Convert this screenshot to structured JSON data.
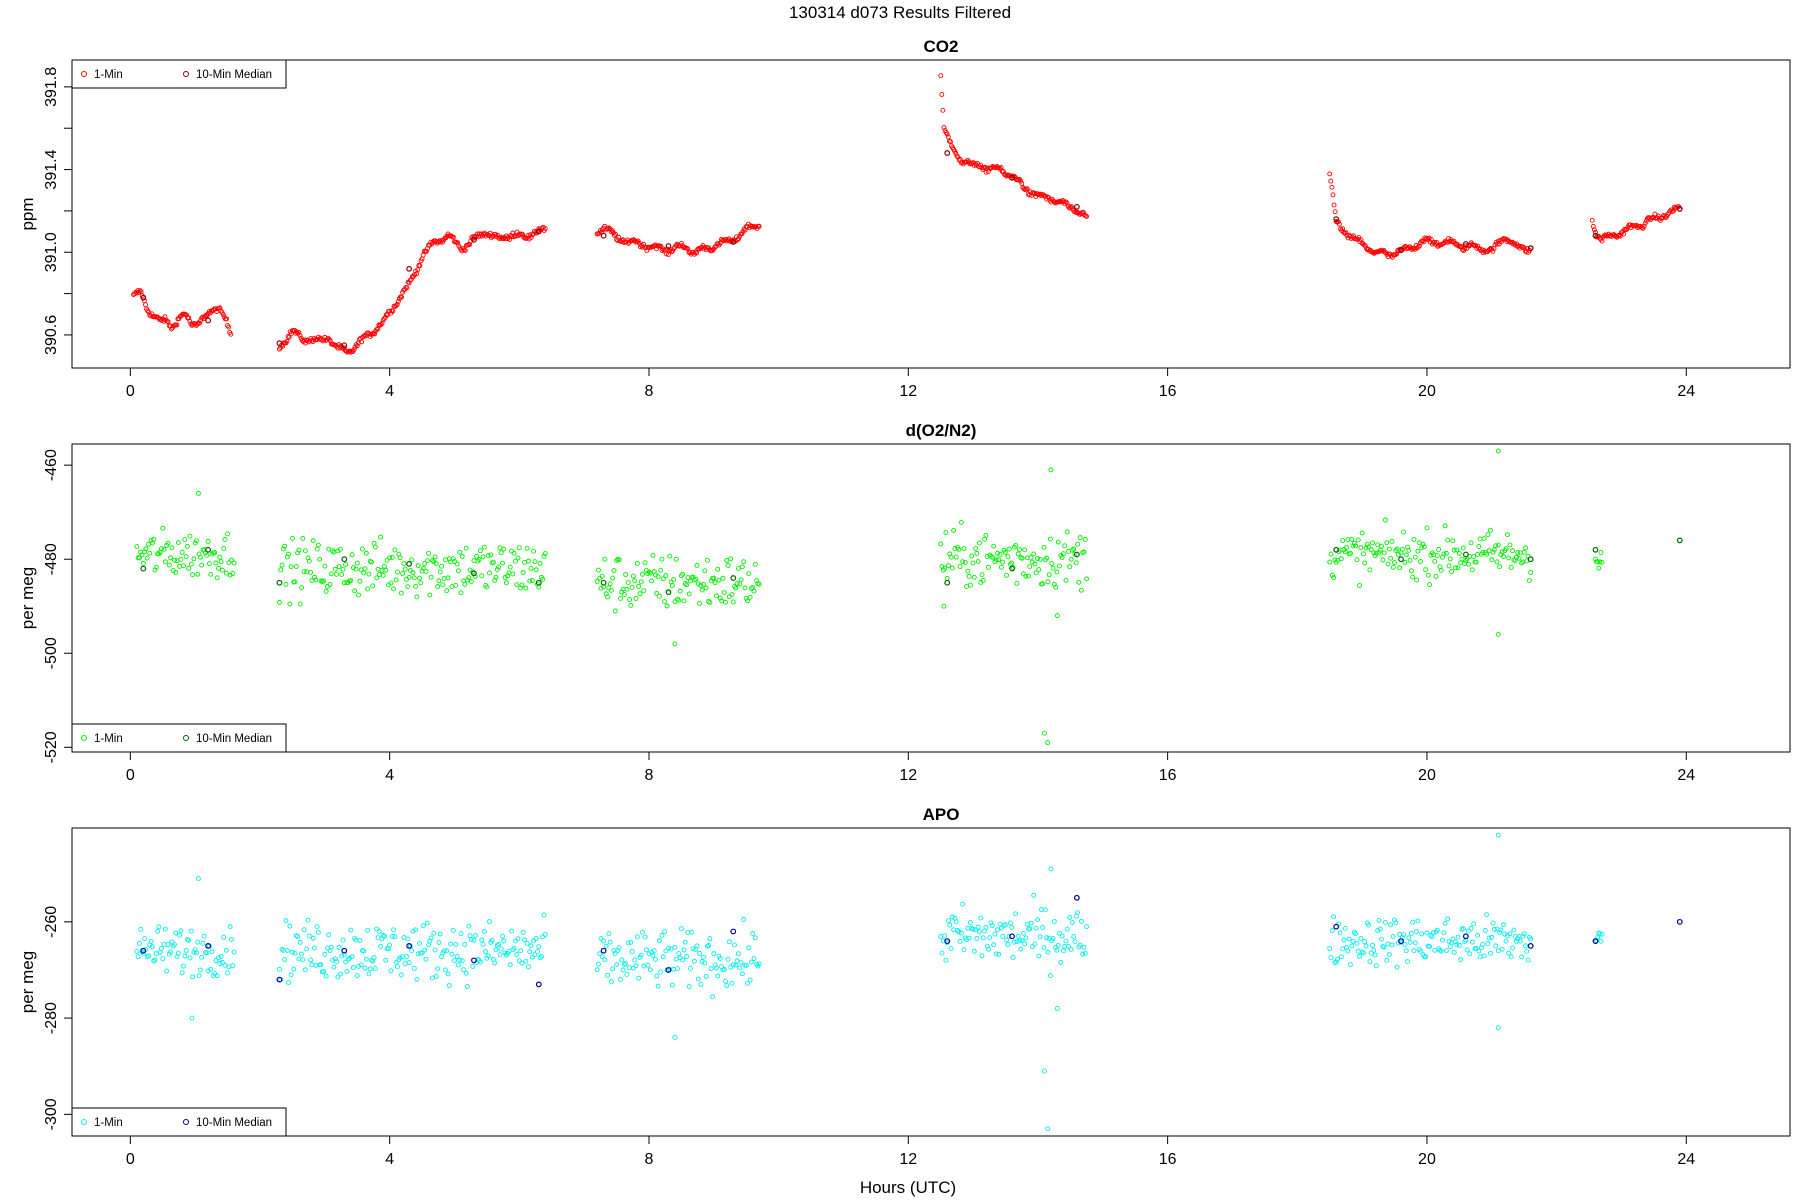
{
  "suptitle": "130314   d073   Results Filtered",
  "xlabel": "Hours (UTC)",
  "colors": {
    "co2_1min": "#ff0000",
    "co2_median": "#8b0000",
    "o2_1min": "#00ee00",
    "o2_median": "#006400",
    "apo_1min": "#00eeee",
    "apo_median": "#00008b"
  },
  "chart_data": [
    {
      "type": "scatter",
      "title": "CO2",
      "ylabel": "ppm",
      "xlim": [
        -0.9,
        25.6
      ],
      "ylim": [
        390.44,
        391.93
      ],
      "xticks": [
        0,
        4,
        8,
        12,
        16,
        20,
        24
      ],
      "yticks": [
        390.6,
        391.0,
        391.4,
        391.8
      ],
      "ytick_labels": [
        "390.6",
        "391.0",
        "391.4",
        "391.8"
      ],
      "legend": [
        "1-Min",
        "10-Min Median"
      ],
      "legend_position": "top-left",
      "series": [
        {
          "name": "1-Min",
          "color": "#ff0000",
          "segments": [
            {
              "x": [
                0.05,
                0.17,
                0.25,
                0.35,
                0.45,
                0.55,
                0.65,
                0.75,
                0.85,
                0.95,
                1.05,
                1.15,
                1.25,
                1.35,
                1.45,
                1.55
              ],
              "y": [
                390.78,
                390.81,
                390.74,
                390.69,
                390.66,
                390.68,
                390.64,
                390.67,
                390.7,
                390.66,
                390.65,
                390.68,
                390.72,
                390.74,
                390.68,
                390.6
              ]
            },
            {
              "x": [
                2.3,
                2.5,
                2.7,
                2.9,
                3.05,
                3.2,
                3.35,
                3.5,
                3.7,
                3.9,
                4.1,
                4.3,
                4.5,
                4.7,
                4.9,
                5.1,
                5.3,
                5.5,
                5.7,
                5.9,
                6.1,
                6.3,
                6.4
              ],
              "y": [
                390.55,
                390.61,
                390.58,
                390.57,
                390.59,
                390.53,
                390.52,
                390.55,
                390.61,
                390.66,
                390.76,
                390.84,
                390.98,
                391.05,
                391.08,
                391.02,
                391.06,
                391.1,
                391.06,
                391.09,
                391.07,
                391.11,
                391.1
              ]
            },
            {
              "x": [
                7.2,
                7.3,
                7.5,
                7.7,
                7.9,
                8.1,
                8.3,
                8.5,
                8.7,
                8.9,
                9.1,
                9.3,
                9.5,
                9.7
              ],
              "y": [
                391.1,
                391.12,
                391.07,
                391.05,
                391.04,
                391.02,
                391.01,
                391.03,
                391.0,
                391.02,
                391.04,
                391.06,
                391.11,
                391.14
              ]
            },
            {
              "x": [
                12.5,
                12.55,
                12.65,
                12.8,
                13.0,
                13.2,
                13.4,
                13.6,
                13.8,
                14.0,
                14.2,
                14.4,
                14.6,
                14.75
              ],
              "y": [
                391.86,
                391.6,
                391.52,
                391.45,
                391.42,
                391.41,
                391.4,
                391.37,
                391.31,
                391.27,
                391.26,
                391.23,
                391.2,
                391.17
              ]
            },
            {
              "x": [
                18.5,
                18.6,
                18.8,
                19.0,
                19.2,
                19.4,
                19.6,
                19.8,
                20.0,
                20.2,
                20.4,
                20.6,
                20.8,
                21.0,
                21.2,
                21.4,
                21.6
              ],
              "y": [
                391.38,
                391.14,
                391.08,
                391.04,
                391.0,
                390.99,
                391.0,
                391.03,
                391.06,
                391.04,
                391.05,
                391.02,
                391.03,
                391.0,
                391.08,
                391.02,
                391.02
              ]
            },
            {
              "x": [
                22.55,
                22.6,
                22.65,
                22.7,
                23.9
              ],
              "y": [
                391.16,
                391.1,
                391.08,
                391.06,
                391.21
              ]
            }
          ]
        },
        {
          "name": "10-Min Median",
          "color": "#8b0000",
          "x": [
            0.2,
            1.2,
            2.3,
            3.3,
            4.3,
            5.3,
            6.3,
            7.3,
            8.3,
            9.3,
            12.6,
            13.6,
            14.6,
            18.6,
            19.6,
            20.6,
            21.6,
            22.6,
            23.9
          ],
          "y": [
            390.78,
            390.67,
            390.56,
            390.55,
            390.92,
            391.06,
            391.1,
            391.08,
            391.03,
            391.05,
            391.48,
            391.36,
            391.22,
            391.16,
            391.01,
            391.04,
            391.02,
            391.08,
            391.21
          ]
        }
      ]
    },
    {
      "type": "scatter",
      "title": "d(O2/N2)",
      "ylabel": "per meg",
      "xlim": [
        -0.9,
        25.6
      ],
      "ylim": [
        -521,
        -455.5
      ],
      "xticks": [
        0,
        4,
        8,
        12,
        16,
        20,
        24
      ],
      "yticks": [
        -520,
        -500,
        -480,
        -460
      ],
      "ytick_labels": [
        "-520",
        "-500",
        "-480",
        "-460"
      ],
      "legend": [
        "1-Min",
        "10-Min Median"
      ],
      "legend_position": "bottom-left",
      "series": [
        {
          "name": "1-Min",
          "color": "#00ee00",
          "segments": [
            {
              "x": [
                0.1,
                1.6
              ],
              "mean": -479,
              "spread": 5
            },
            {
              "x": [
                2.3,
                6.4
              ],
              "mean": -482,
              "spread": 6
            },
            {
              "x": [
                7.2,
                9.7
              ],
              "mean": -485,
              "spread": 6
            },
            {
              "x": [
                12.5,
                14.75
              ],
              "mean": -480,
              "spread": 6
            },
            {
              "x": [
                18.5,
                21.6
              ],
              "mean": -479,
              "spread": 5
            },
            {
              "x": [
                22.6,
                22.7
              ],
              "mean": -480,
              "spread": 3
            }
          ],
          "outliers": {
            "x": [
              14.1,
              14.15,
              14.2,
              14.3,
              21.1,
              21.1,
              1.05,
              8.4,
              12.55
            ],
            "y": [
              -517,
              -519,
              -461,
              -492,
              -457,
              -496,
              -466,
              -498,
              -490
            ]
          }
        },
        {
          "name": "10-Min Median",
          "color": "#006400",
          "x": [
            0.2,
            1.2,
            2.3,
            3.3,
            4.3,
            5.3,
            6.3,
            7.3,
            8.3,
            9.3,
            12.6,
            13.6,
            14.6,
            18.6,
            19.6,
            20.6,
            21.6,
            22.6,
            23.9
          ],
          "y": [
            -482,
            -478,
            -485,
            -480,
            -481,
            -483,
            -485,
            -485,
            -487,
            -484,
            -485,
            -482,
            -479,
            -478,
            -480,
            -479,
            -480,
            -478,
            -476
          ]
        }
      ]
    },
    {
      "type": "scatter",
      "title": "APO",
      "ylabel": "per meg",
      "xlim": [
        -0.9,
        25.6
      ],
      "ylim": [
        -304.5,
        -240.5
      ],
      "xticks": [
        0,
        4,
        8,
        12,
        16,
        20,
        24
      ],
      "yticks": [
        -300,
        -280,
        -260
      ],
      "ytick_labels": [
        "-300",
        "-280",
        "-260"
      ],
      "legend": [
        "1-Min",
        "10-Min Median"
      ],
      "legend_position": "bottom-left",
      "series": [
        {
          "name": "1-Min",
          "color": "#00eeee",
          "segments": [
            {
              "x": [
                0.1,
                1.6
              ],
              "mean": -266,
              "spread": 5
            },
            {
              "x": [
                2.3,
                6.4
              ],
              "mean": -266,
              "spread": 6
            },
            {
              "x": [
                7.2,
                9.7
              ],
              "mean": -268,
              "spread": 6
            },
            {
              "x": [
                12.5,
                14.75
              ],
              "mean": -263,
              "spread": 6
            },
            {
              "x": [
                18.5,
                21.6
              ],
              "mean": -264,
              "spread": 5
            },
            {
              "x": [
                22.6,
                22.7
              ],
              "mean": -264,
              "spread": 3
            }
          ],
          "outliers": {
            "x": [
              14.1,
              14.15,
              14.2,
              14.3,
              21.1,
              21.1,
              1.05,
              8.4,
              0.95
            ],
            "y": [
              -291,
              -303,
              -249,
              -278,
              -242,
              -282,
              -251,
              -284,
              -280
            ]
          }
        },
        {
          "name": "10-Min Median",
          "color": "#00008b",
          "x": [
            0.2,
            1.2,
            2.3,
            3.3,
            4.3,
            5.3,
            6.3,
            7.3,
            8.3,
            9.3,
            12.6,
            13.6,
            14.6,
            18.6,
            19.6,
            20.6,
            21.6,
            22.6,
            23.9
          ],
          "y": [
            -266,
            -265,
            -272,
            -266,
            -265,
            -268,
            -273,
            -266,
            -270,
            -262,
            -264,
            -263,
            -255,
            -261,
            -264,
            -263,
            -265,
            -264,
            -260
          ]
        }
      ]
    }
  ]
}
